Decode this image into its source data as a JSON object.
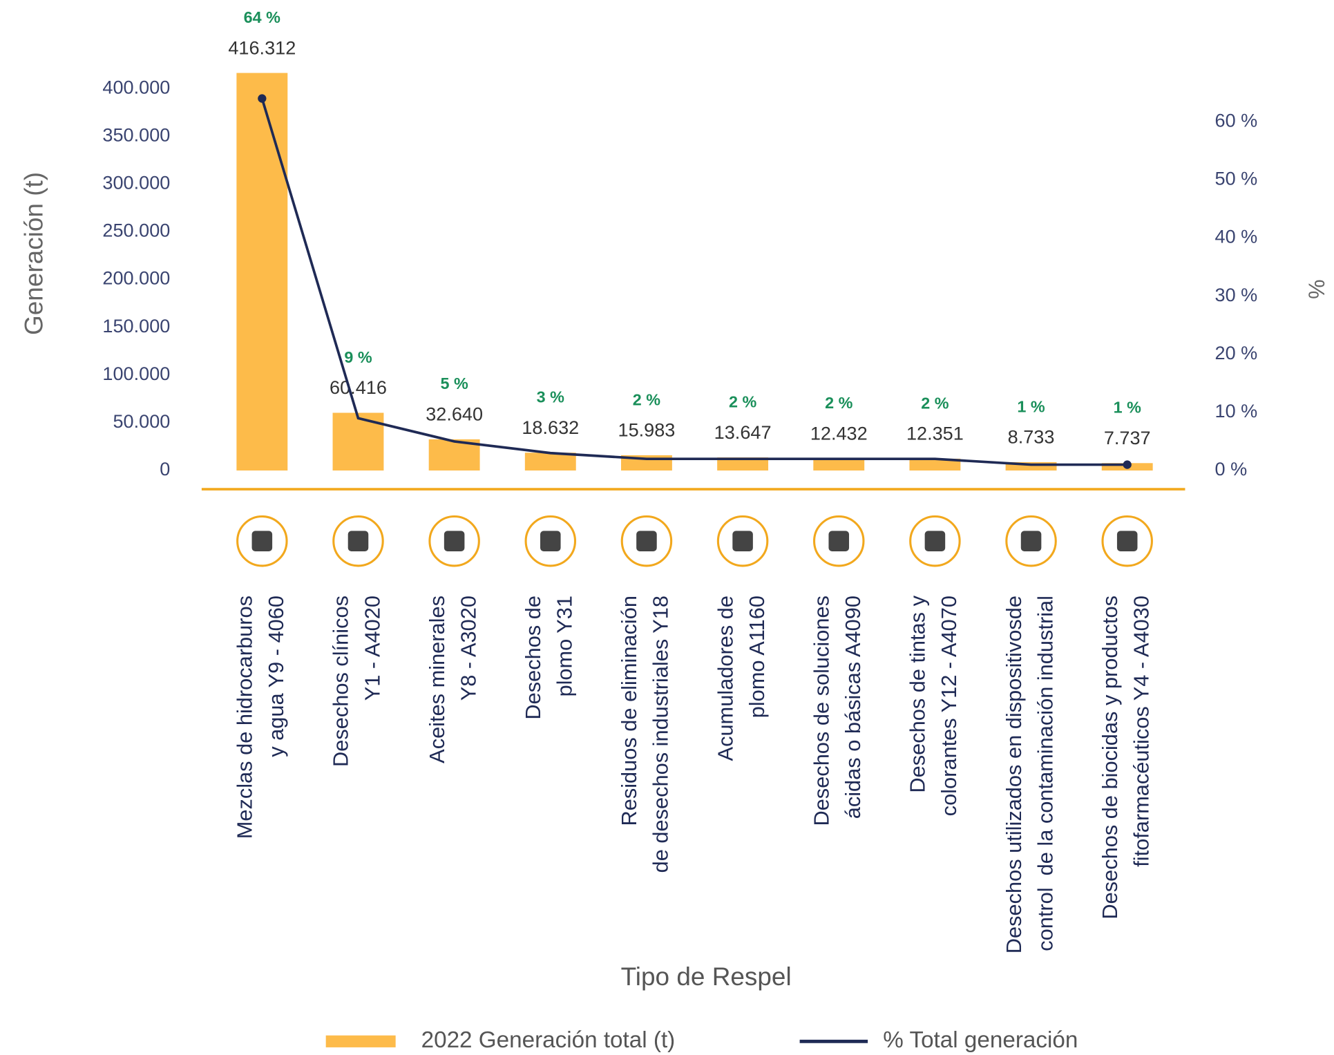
{
  "chart_data": {
    "type": "bar-line",
    "x_label": "Tipo de Respel",
    "y_label": "Generación (t)",
    "y2_label": "%",
    "categories": [
      "Mezclas de hidrocarburos\ny agua Y9 - 4060",
      "Desechos clínicos\nY1 - A4020",
      "Aceites minerales\nY8 - A3020",
      "Desechos de\nplomo Y31",
      "Residuos de eliminación\nde desechos industriales Y18",
      "Acumuladores de\nplomo A1160",
      "Desechos de soluciones\nácidas o básicas A4090",
      "Desechos de tintas y\ncolorantes Y12 - A4070",
      "Desechos utilizados en dispositivosde\ncontrol  de la contaminación industrial",
      "Desechos de biocidas y productos\nfitofarmacéuticos Y4 - A4030"
    ],
    "series": [
      {
        "name": "2022 Generación total (t)",
        "type": "bar",
        "color": "#fdbb4a",
        "values": [
          416312,
          60416,
          32640,
          18632,
          15983,
          13647,
          12432,
          12351,
          8733,
          7737
        ],
        "value_labels": [
          "416.312",
          "60.416",
          "32.640",
          "18.632",
          "15.983",
          "13.647",
          "12.432",
          "12.351",
          "8.733",
          "7.737"
        ]
      },
      {
        "name": "% Total generación",
        "type": "line",
        "axis": "y2",
        "color": "#1f2a55",
        "values": [
          64,
          9,
          5,
          3,
          2,
          2,
          2,
          2,
          1,
          1
        ],
        "value_labels": [
          "64 %",
          "9 %",
          "5 %",
          "3 %",
          "2 %",
          "2 %",
          "2 %",
          "2 %",
          "1 %",
          "1 %"
        ]
      }
    ],
    "ylim": [
      0,
      420000
    ],
    "yticks": [
      {
        "value": 0,
        "label": "0"
      },
      {
        "value": 50000,
        "label": "50.000"
      },
      {
        "value": 100000,
        "label": "100.000"
      },
      {
        "value": 150000,
        "label": "150.000"
      },
      {
        "value": 200000,
        "label": "200.000"
      },
      {
        "value": 250000,
        "label": "250.000"
      },
      {
        "value": 300000,
        "label": "300.000"
      },
      {
        "value": 350000,
        "label": "350.000"
      },
      {
        "value": 400000,
        "label": "400.000"
      }
    ],
    "y2lim": [
      0,
      69
    ],
    "y2ticks": [
      {
        "value": 0,
        "label": "0 %"
      },
      {
        "value": 10,
        "label": "10 %"
      },
      {
        "value": 20,
        "label": "20 %"
      },
      {
        "value": 30,
        "label": "30 %"
      },
      {
        "value": 40,
        "label": "40 %"
      },
      {
        "value": 50,
        "label": "50 %"
      },
      {
        "value": 60,
        "label": "60 %"
      }
    ],
    "grid": false,
    "legend": "bottom"
  }
}
